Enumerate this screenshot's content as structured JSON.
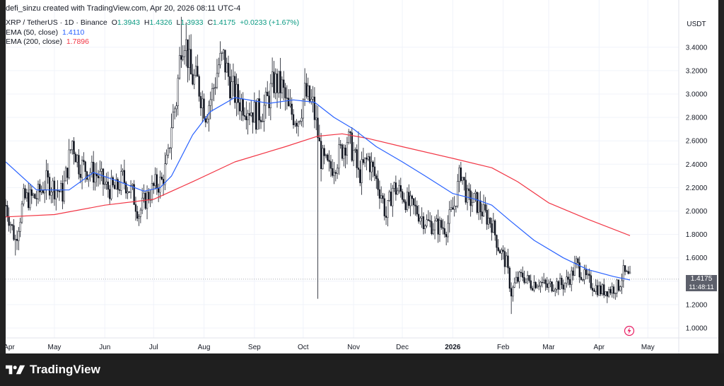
{
  "header": {
    "attribution": "defi_sinzu created with TradingView.com, Apr 20, 2026 08:11 UTC-4",
    "symbol": "XRP / TetherUS · 1D · Binance",
    "ohlc": {
      "o_label": "O",
      "o": "1.3943",
      "h_label": "H",
      "h": "1.4326",
      "l_label": "L",
      "l": "1.3933",
      "c_label": "C",
      "c": "1.4175",
      "change": "+0.0233 (+1.67%)"
    },
    "ema50": {
      "label": "EMA (50, close)",
      "value": "1.4110",
      "color": "#2962ff"
    },
    "ema200": {
      "label": "EMA (200, close)",
      "value": "1.7896",
      "color": "#f23645"
    }
  },
  "axis": {
    "currency": "USDT",
    "price_ticks": [
      "3.4000",
      "3.2000",
      "3.0000",
      "2.8000",
      "2.6000",
      "2.4000",
      "2.2000",
      "2.0000",
      "1.8000",
      "1.6000",
      "1.2000",
      "1.0000"
    ],
    "month_labels": [
      "Apr",
      "May",
      "Jun",
      "Jul",
      "Aug",
      "Sep",
      "Oct",
      "Nov",
      "Dec",
      "2026",
      "Feb",
      "Mar",
      "Apr",
      "May"
    ],
    "last_price": "1.4175",
    "countdown": "11:48:11"
  },
  "footer": {
    "brand": "TradingView"
  },
  "chart_data": {
    "type": "candlestick",
    "symbol": "XRP / TetherUS",
    "interval": "1D",
    "exchange": "Binance",
    "y_range": [
      0.9,
      3.6
    ],
    "x_range": [
      "2025-04-01",
      "2026-05-20"
    ],
    "grid": true,
    "price_path": [
      [
        "2025-04-01",
        2.05
      ],
      [
        "2025-04-07",
        1.75
      ],
      [
        "2025-04-12",
        2.1
      ],
      [
        "2025-04-20",
        2.12
      ],
      [
        "2025-04-26",
        2.25
      ],
      [
        "2025-05-01",
        2.2
      ],
      [
        "2025-05-06",
        2.15
      ],
      [
        "2025-05-10",
        2.45
      ],
      [
        "2025-05-12",
        2.6
      ],
      [
        "2025-05-16",
        2.4
      ],
      [
        "2025-05-22",
        2.35
      ],
      [
        "2025-05-28",
        2.3
      ],
      [
        "2025-06-02",
        2.2
      ],
      [
        "2025-06-08",
        2.18
      ],
      [
        "2025-06-12",
        2.28
      ],
      [
        "2025-06-18",
        2.15
      ],
      [
        "2025-06-22",
        1.98
      ],
      [
        "2025-06-26",
        2.1
      ],
      [
        "2025-07-02",
        2.22
      ],
      [
        "2025-07-06",
        2.25
      ],
      [
        "2025-07-10",
        2.45
      ],
      [
        "2025-07-12",
        2.75
      ],
      [
        "2025-07-15",
        2.95
      ],
      [
        "2025-07-18",
        3.45
      ],
      [
        "2025-07-20",
        3.5
      ],
      [
        "2025-07-24",
        3.15
      ],
      [
        "2025-07-28",
        3.1
      ],
      [
        "2025-08-02",
        2.85
      ],
      [
        "2025-08-06",
        3.0
      ],
      [
        "2025-08-10",
        3.25
      ],
      [
        "2025-08-13",
        3.3
      ],
      [
        "2025-08-18",
        3.05
      ],
      [
        "2025-08-22",
        2.95
      ],
      [
        "2025-08-28",
        2.9
      ],
      [
        "2025-09-02",
        2.82
      ],
      [
        "2025-09-08",
        2.9
      ],
      [
        "2025-09-13",
        3.1
      ],
      [
        "2025-09-18",
        3.05
      ],
      [
        "2025-09-22",
        2.85
      ],
      [
        "2025-09-28",
        2.8
      ],
      [
        "2025-10-02",
        3.0
      ],
      [
        "2025-10-07",
        2.9
      ],
      [
        "2025-10-10",
        2.65
      ],
      [
        "2025-10-12",
        2.45
      ],
      [
        "2025-10-17",
        2.35
      ],
      [
        "2025-10-22",
        2.45
      ],
      [
        "2025-10-28",
        2.62
      ],
      [
        "2025-11-01",
        2.5
      ],
      [
        "2025-11-04",
        2.3
      ],
      [
        "2025-11-10",
        2.45
      ],
      [
        "2025-11-14",
        2.3
      ],
      [
        "2025-11-18",
        2.15
      ],
      [
        "2025-11-21",
        1.95
      ],
      [
        "2025-11-25",
        2.2
      ],
      [
        "2025-12-01",
        2.15
      ],
      [
        "2025-12-05",
        2.05
      ],
      [
        "2025-12-10",
        2.0
      ],
      [
        "2025-12-16",
        1.9
      ],
      [
        "2025-12-22",
        1.87
      ],
      [
        "2025-12-28",
        1.86
      ],
      [
        "2026-01-02",
        2.05
      ],
      [
        "2026-01-06",
        2.35
      ],
      [
        "2026-01-10",
        2.1
      ],
      [
        "2026-01-15",
        2.08
      ],
      [
        "2026-01-20",
        1.98
      ],
      [
        "2026-01-25",
        1.9
      ],
      [
        "2026-01-29",
        1.7
      ],
      [
        "2026-02-03",
        1.55
      ],
      [
        "2026-02-06",
        1.3
      ],
      [
        "2026-02-09",
        1.4
      ],
      [
        "2026-02-13",
        1.45
      ],
      [
        "2026-02-18",
        1.38
      ],
      [
        "2026-02-23",
        1.4
      ],
      [
        "2026-02-28",
        1.35
      ],
      [
        "2026-03-05",
        1.38
      ],
      [
        "2026-03-10",
        1.37
      ],
      [
        "2026-03-15",
        1.45
      ],
      [
        "2026-03-18",
        1.55
      ],
      [
        "2026-03-22",
        1.45
      ],
      [
        "2026-03-27",
        1.38
      ],
      [
        "2026-04-02",
        1.32
      ],
      [
        "2026-04-08",
        1.33
      ],
      [
        "2026-04-13",
        1.36
      ],
      [
        "2026-04-16",
        1.47
      ],
      [
        "2026-04-20",
        1.4175
      ]
    ],
    "ema50": [
      [
        "2025-04-01",
        2.42
      ],
      [
        "2025-04-20",
        2.18
      ],
      [
        "2025-05-10",
        2.18
      ],
      [
        "2025-05-25",
        2.33
      ],
      [
        "2025-06-10",
        2.25
      ],
      [
        "2025-06-25",
        2.17
      ],
      [
        "2025-07-05",
        2.2
      ],
      [
        "2025-07-12",
        2.3
      ],
      [
        "2025-07-25",
        2.65
      ],
      [
        "2025-08-05",
        2.85
      ],
      [
        "2025-08-20",
        2.97
      ],
      [
        "2025-09-10",
        2.92
      ],
      [
        "2025-09-25",
        2.95
      ],
      [
        "2025-10-08",
        2.93
      ],
      [
        "2025-10-20",
        2.8
      ],
      [
        "2025-11-01",
        2.7
      ],
      [
        "2025-11-15",
        2.55
      ],
      [
        "2025-12-01",
        2.42
      ],
      [
        "2025-12-15",
        2.3
      ],
      [
        "2026-01-01",
        2.15
      ],
      [
        "2026-01-15",
        2.1
      ],
      [
        "2026-01-25",
        2.05
      ],
      [
        "2026-02-05",
        1.92
      ],
      [
        "2026-02-20",
        1.75
      ],
      [
        "2026-03-10",
        1.6
      ],
      [
        "2026-03-25",
        1.5
      ],
      [
        "2026-04-10",
        1.44
      ],
      [
        "2026-04-20",
        1.411
      ]
    ],
    "ema200": [
      [
        "2025-04-01",
        1.95
      ],
      [
        "2025-05-01",
        1.97
      ],
      [
        "2025-06-01",
        2.05
      ],
      [
        "2025-07-01",
        2.1
      ],
      [
        "2025-07-25",
        2.25
      ],
      [
        "2025-08-20",
        2.42
      ],
      [
        "2025-09-20",
        2.55
      ],
      [
        "2025-10-10",
        2.64
      ],
      [
        "2025-10-25",
        2.66
      ],
      [
        "2025-11-10",
        2.62
      ],
      [
        "2025-12-01",
        2.55
      ],
      [
        "2026-01-01",
        2.45
      ],
      [
        "2026-01-25",
        2.37
      ],
      [
        "2026-02-10",
        2.25
      ],
      [
        "2026-03-01",
        2.07
      ],
      [
        "2026-03-25",
        1.93
      ],
      [
        "2026-04-20",
        1.79
      ]
    ],
    "wick_extremes": [
      [
        "2025-04-07",
        1.62
      ],
      [
        "2025-07-18",
        3.66
      ],
      [
        "2025-10-10",
        1.25
      ],
      [
        "2025-11-04",
        2.68
      ],
      [
        "2026-01-06",
        2.42
      ],
      [
        "2026-02-06",
        1.12
      ]
    ]
  }
}
